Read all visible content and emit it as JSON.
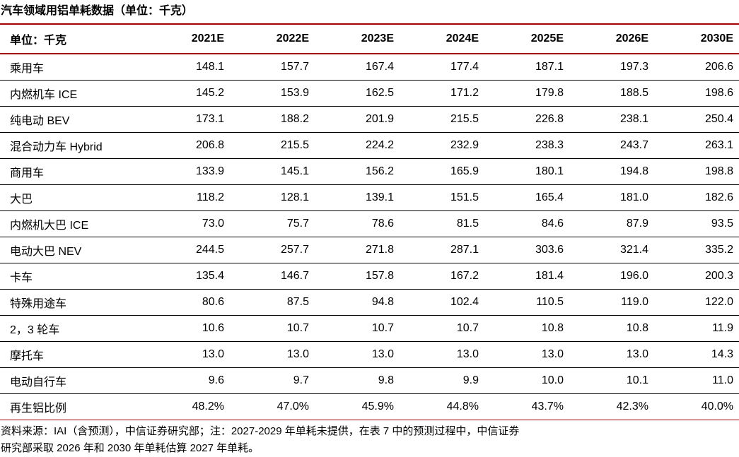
{
  "title": "汽车领域用铝单耗数据（单位：千克）",
  "colors": {
    "accent_rule_red": "#A50000",
    "text": "#000000",
    "row_divider": "#000000",
    "background": "#FFFFFF"
  },
  "table": {
    "header": [
      "单位：千克",
      "2021E",
      "2022E",
      "2023E",
      "2024E",
      "2025E",
      "2026E",
      "2030E"
    ],
    "rows": [
      {
        "label": "乘用车",
        "values": [
          "148.1",
          "157.7",
          "167.4",
          "177.4",
          "187.1",
          "197.3",
          "206.6"
        ]
      },
      {
        "label": "内燃机车 ICE",
        "values": [
          "145.2",
          "153.9",
          "162.5",
          "171.2",
          "179.8",
          "188.5",
          "198.6"
        ]
      },
      {
        "label": "纯电动 BEV",
        "values": [
          "173.1",
          "188.2",
          "201.9",
          "215.5",
          "226.8",
          "238.1",
          "250.4"
        ]
      },
      {
        "label": "混合动力车 Hybrid",
        "values": [
          "206.8",
          "215.5",
          "224.2",
          "232.9",
          "238.3",
          "243.7",
          "263.1"
        ]
      },
      {
        "label": "商用车",
        "values": [
          "133.9",
          "145.1",
          "156.2",
          "165.9",
          "180.1",
          "194.8",
          "198.8"
        ]
      },
      {
        "label": "大巴",
        "values": [
          "118.2",
          "128.1",
          "139.1",
          "151.5",
          "165.4",
          "181.0",
          "182.6"
        ]
      },
      {
        "label": "内燃机大巴 ICE",
        "values": [
          "73.0",
          "75.7",
          "78.6",
          "81.5",
          "84.6",
          "87.9",
          "93.5"
        ]
      },
      {
        "label": "电动大巴 NEV",
        "values": [
          "244.5",
          "257.7",
          "271.8",
          "287.1",
          "303.6",
          "321.4",
          "335.2"
        ]
      },
      {
        "label": "卡车",
        "values": [
          "135.4",
          "146.7",
          "157.8",
          "167.2",
          "181.4",
          "196.0",
          "200.3"
        ]
      },
      {
        "label": "特殊用途车",
        "values": [
          "80.6",
          "87.5",
          "94.8",
          "102.4",
          "110.5",
          "119.0",
          "122.0"
        ]
      },
      {
        "label": "2，3 轮车",
        "values": [
          "10.6",
          "10.7",
          "10.7",
          "10.7",
          "10.8",
          "10.8",
          "11.9"
        ]
      },
      {
        "label": "摩托车",
        "values": [
          "13.0",
          "13.0",
          "13.0",
          "13.0",
          "13.0",
          "13.0",
          "14.3"
        ]
      },
      {
        "label": "电动自行车",
        "values": [
          "9.6",
          "9.7",
          "9.8",
          "9.9",
          "10.0",
          "10.1",
          "11.0"
        ]
      },
      {
        "label": "再生铝比例",
        "values": [
          "48.2%",
          "47.0%",
          "45.9%",
          "44.8%",
          "43.7%",
          "42.3%",
          "40.0%"
        ]
      }
    ]
  },
  "footnote": {
    "line1": "资料来源：IAI（含预测），中信证券研究部；注：2027-2029 年单耗未提供，在表 7 中的预测过程中，中信证券",
    "line2": "研究部采取 2026 年和 2030 年单耗估算 2027 年单耗。"
  }
}
